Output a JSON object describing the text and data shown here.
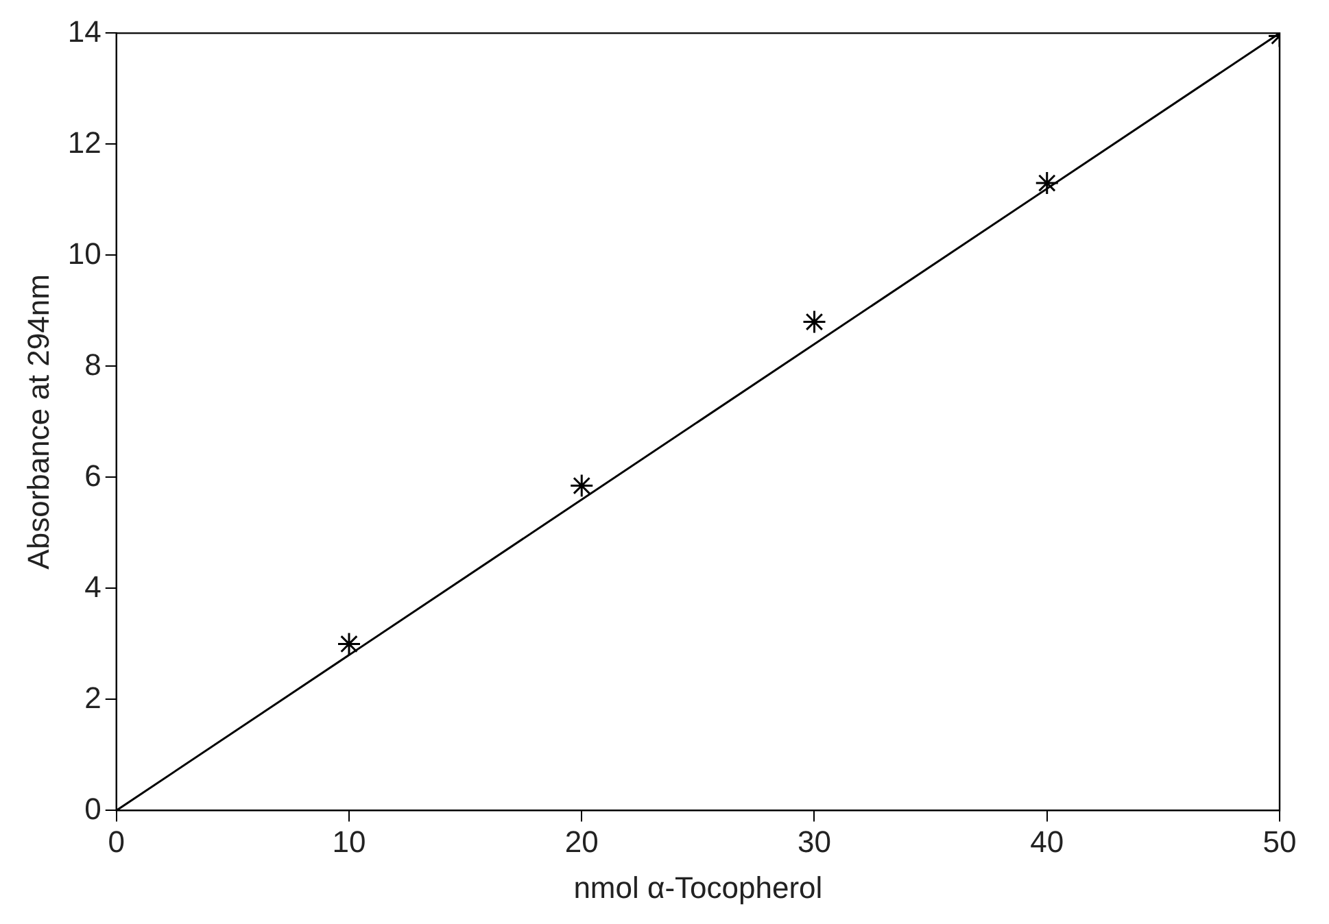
{
  "chart_data": {
    "type": "scatter",
    "xlabel": "nmol α-Tocopherol",
    "ylabel": "Absorbance at 294nm",
    "x": [
      10,
      20,
      30,
      40,
      50
    ],
    "series": [
      {
        "type": "scatter",
        "color": "#000000",
        "marker": "cross",
        "values": [
          3.0,
          5.85,
          8.8,
          11.3,
          13.95
        ]
      },
      {
        "type": "line",
        "color": "#000000",
        "marker": "none",
        "line_style": "solid",
        "x": [
          0,
          50
        ],
        "values": [
          0,
          14
        ]
      }
    ],
    "xlim": [
      0,
      50
    ],
    "xticks": [
      0,
      10,
      20,
      30,
      40,
      50
    ],
    "ylim": [
      0,
      14
    ],
    "yticks": [
      0,
      2,
      4,
      6,
      8,
      10,
      12,
      14
    ],
    "grid": false,
    "legend": false
  }
}
